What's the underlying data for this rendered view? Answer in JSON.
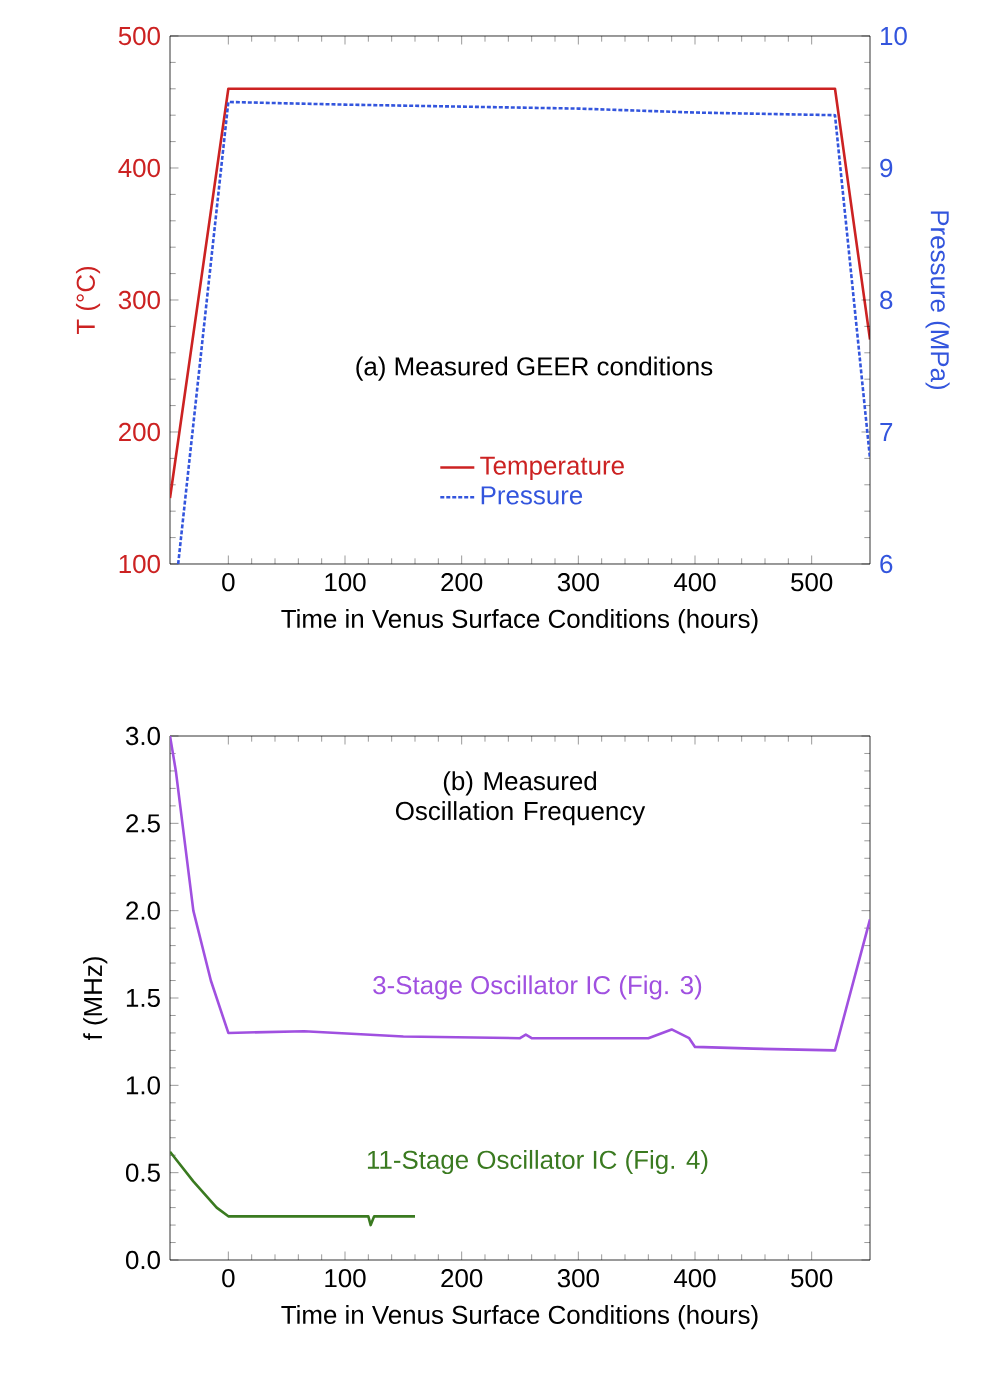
{
  "chart_data": [
    {
      "type": "line",
      "title": "(a) Measured GEER conditions",
      "xlabel": "Time in Venus Surface Conditions (hours)",
      "ylabel": "T (°C)",
      "y2label": "Pressure (MPa)",
      "xlim": [
        -50,
        550
      ],
      "xticks": [
        0,
        100,
        200,
        300,
        400,
        500
      ],
      "ylim": [
        100,
        500
      ],
      "yticks": [
        100,
        200,
        300,
        400,
        500
      ],
      "y2lim": [
        6,
        10
      ],
      "y2ticks": [
        6,
        7,
        8,
        9,
        10
      ],
      "legend": "bottom",
      "series": [
        {
          "name": "Temperature",
          "color": "#cc2222",
          "line_style": "solid",
          "x": [
            -50,
            0,
            520,
            550
          ],
          "values": [
            150,
            460,
            460,
            270
          ]
        },
        {
          "name": "Pressure",
          "color": "#3355dd",
          "line_style": "dashed",
          "axis": "y2",
          "x": [
            -43,
            0,
            100,
            300,
            400,
            520,
            550
          ],
          "values": [
            6.0,
            9.5,
            9.48,
            9.45,
            9.42,
            9.4,
            6.8
          ]
        }
      ]
    },
    {
      "type": "line",
      "title": "(b) Measured Oscillation Frequency",
      "xlabel": "Time in Venus Surface Conditions (hours)",
      "ylabel": "f (MHz)",
      "xlim": [
        -50,
        550
      ],
      "xticks": [
        0,
        100,
        200,
        300,
        400,
        500
      ],
      "ylim": [
        0,
        3
      ],
      "yticks": [
        {
          "value": 0,
          "label": "0.0"
        },
        0.5,
        {
          "value": 1,
          "label": "1.0"
        },
        1.5,
        {
          "value": 2,
          "label": "2.0"
        },
        2.5,
        {
          "value": 3,
          "label": "3.0"
        }
      ],
      "series": [
        {
          "name": "3-Stage Oscillator IC (Fig. 3)",
          "color": "#a050e0",
          "x": [
            -50,
            -45,
            -30,
            -15,
            0,
            65,
            150,
            250,
            255,
            260,
            360,
            380,
            395,
            400,
            450,
            520,
            550
          ],
          "values": [
            3.0,
            2.8,
            2.0,
            1.6,
            1.3,
            1.31,
            1.28,
            1.27,
            1.29,
            1.27,
            1.27,
            1.32,
            1.27,
            1.22,
            1.21,
            1.2,
            1.95
          ]
        },
        {
          "name": "11-Stage Oscillator IC (Fig. 4)",
          "color": "#3a7a20",
          "x": [
            -50,
            -30,
            -10,
            0,
            60,
            120,
            122,
            125,
            160
          ],
          "values": [
            0.62,
            0.45,
            0.3,
            0.25,
            0.25,
            0.25,
            0.2,
            0.25,
            0.25
          ]
        }
      ]
    }
  ]
}
